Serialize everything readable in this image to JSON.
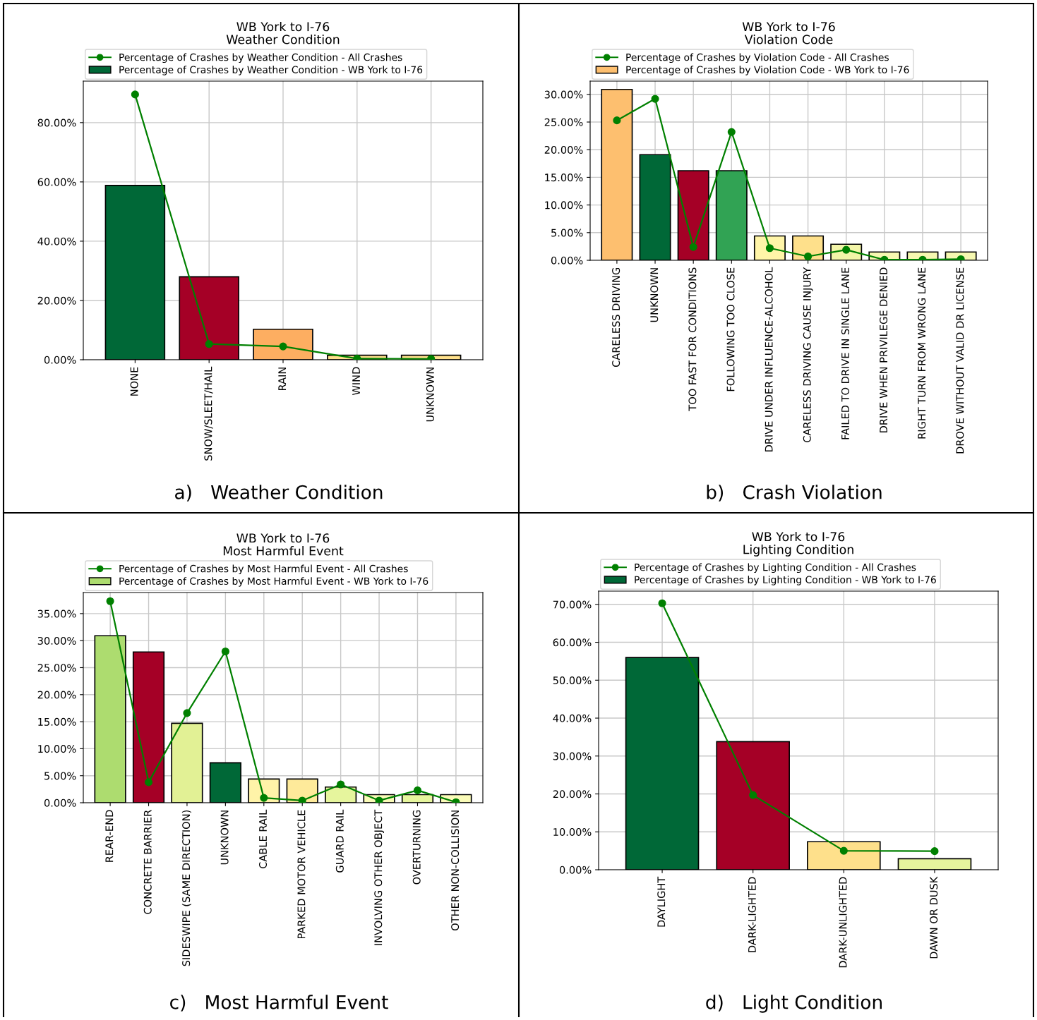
{
  "chart_data": [
    {
      "type": "bar",
      "title": "WB York to I-76\nWeather Condition",
      "categories": [
        "NONE",
        "SNOW/SLEET/HAIL",
        "RAIN",
        "WIND",
        "UNKNOWN"
      ],
      "series": [
        {
          "name": "Percentage of Crashes by Weather Condition - All Crashes",
          "type": "line",
          "color": "#008000",
          "values": [
            89.5,
            5.3,
            4.5,
            0.4,
            0.3
          ]
        },
        {
          "name": "Percentage of Crashes by Weather Condition - WB York to I-76",
          "color": "#006837",
          "colors": [
            "#006837",
            "#a50026",
            "#fdae61",
            "#fee08b",
            "#fee08b"
          ],
          "values": [
            58.8,
            28.0,
            10.3,
            1.5,
            1.5
          ]
        }
      ],
      "legend": "top",
      "ylim": [
        0,
        94
      ],
      "yticks": [
        {
          "value": 0,
          "label": "0.00%"
        },
        {
          "value": 20,
          "label": "20.00%"
        },
        {
          "value": 40,
          "label": "40.00%"
        },
        {
          "value": 60,
          "label": "60.00%"
        },
        {
          "value": 80,
          "label": "80.00%"
        }
      ],
      "grid": true,
      "marker": "circle",
      "annotations": [
        "a)   Weather Condition"
      ]
    },
    {
      "type": "bar",
      "title": "WB York to I-76\nViolation Code",
      "categories": [
        "CARELESS DRIVING",
        "UNKNOWN",
        "TOO FAST FOR CONDITIONS",
        "FOLLOWING TOO CLOSE",
        "DRIVE UNDER INFLUENCE-ALCOHOL",
        "CARELESS DRIVING CAUSE INJURY",
        "FAILED TO DRIVE IN SINGLE LANE",
        "DRIVE WHEN PRIVILEGE DENIED",
        "RIGHT TURN FROM WRONG LANE",
        "DROVE WITHOUT VALID DR LICENSE"
      ],
      "series": [
        {
          "name": "Percentage of Crashes by Violation Code - All Crashes",
          "type": "line",
          "color": "#008000",
          "values": [
            25.3,
            29.2,
            2.4,
            23.2,
            2.2,
            0.7,
            1.9,
            0.1,
            0.1,
            0.2
          ]
        },
        {
          "name": "Percentage of Crashes by Violation Code - WB York to I-76",
          "color": "#fdbf6f",
          "colors": [
            "#fdbf6f",
            "#006837",
            "#a50026",
            "#31a354",
            "#fff5a8",
            "#fee08b",
            "#f3f5a8",
            "#f6f8b0",
            "#f6f8b0",
            "#f6f8b0"
          ],
          "values": [
            30.9,
            19.1,
            16.2,
            16.2,
            4.4,
            4.4,
            2.9,
            1.5,
            1.5,
            1.5
          ]
        }
      ],
      "legend": "top",
      "ylim": [
        0,
        32.4
      ],
      "yticks": [
        {
          "value": 0,
          "label": "0.00%"
        },
        {
          "value": 5,
          "label": "5.00%"
        },
        {
          "value": 10,
          "label": "10.00%"
        },
        {
          "value": 15,
          "label": "15.00%"
        },
        {
          "value": 20,
          "label": "20.00%"
        },
        {
          "value": 25,
          "label": "25.00%"
        },
        {
          "value": 30,
          "label": "30.00%"
        }
      ],
      "grid": true,
      "marker": "circle",
      "annotations": [
        "b)   Crash Violation"
      ]
    },
    {
      "type": "bar",
      "title": "WB York to I-76\nMost Harmful Event",
      "categories": [
        "REAR-END",
        "CONCRETE BARRIER",
        "SIDESWIPE (SAME DIRECTION)",
        "UNKNOWN",
        "CABLE RAIL",
        "PARKED MOTOR VEHICLE",
        "GUARD RAIL",
        "INVOLVING OTHER OBJECT",
        "OVERTURNING",
        "OTHER NON-COLLISION"
      ],
      "series": [
        {
          "name": "Percentage of Crashes by Most Harmful Event - All Crashes",
          "type": "line",
          "color": "#008000",
          "values": [
            37.3,
            3.8,
            16.6,
            28.0,
            0.9,
            0.4,
            3.4,
            0.4,
            2.3,
            0.1
          ]
        },
        {
          "name": "Percentage of Crashes by Most Harmful Event - WB York to I-76",
          "color": "#addc6f",
          "colors": [
            "#addc6f",
            "#a50026",
            "#e2f195",
            "#006837",
            "#fff3a8",
            "#feea9a",
            "#e6f59d",
            "#fafbb8",
            "#e6f59d",
            "#fafbb8"
          ],
          "values": [
            30.9,
            27.9,
            14.7,
            7.4,
            4.4,
            4.4,
            2.9,
            1.5,
            1.5,
            1.5
          ]
        }
      ],
      "legend": "top",
      "ylim": [
        0,
        38.9
      ],
      "yticks": [
        {
          "value": 0,
          "label": "0.00%"
        },
        {
          "value": 5,
          "label": "5.00%"
        },
        {
          "value": 10,
          "label": "10.00%"
        },
        {
          "value": 15,
          "label": "15.00%"
        },
        {
          "value": 20,
          "label": "20.00%"
        },
        {
          "value": 25,
          "label": "25.00%"
        },
        {
          "value": 30,
          "label": "30.00%"
        },
        {
          "value": 35,
          "label": "35.00%"
        }
      ],
      "grid": true,
      "marker": "circle",
      "annotations": [
        "c)   Most Harmful Event"
      ]
    },
    {
      "type": "bar",
      "title": "WB York to I-76\nLighting Condition",
      "categories": [
        "DAYLIGHT",
        "DARK-LIGHTED",
        "DARK-UNLIGHTED",
        "DAWN OR DUSK"
      ],
      "series": [
        {
          "name": "Percentage of Crashes by Lighting Condition - All Crashes",
          "type": "line",
          "color": "#008000",
          "values": [
            70.3,
            19.7,
            5.0,
            4.9
          ]
        },
        {
          "name": "Percentage of Crashes by Lighting Condition - WB York to I-76",
          "color": "#006837",
          "colors": [
            "#006837",
            "#a50026",
            "#fee08b",
            "#e6f59d"
          ],
          "values": [
            56.0,
            33.8,
            7.4,
            2.9
          ]
        }
      ],
      "legend": "top",
      "ylim": [
        0,
        73.5
      ],
      "yticks": [
        {
          "value": 0,
          "label": "0.00%"
        },
        {
          "value": 10,
          "label": "10.00%"
        },
        {
          "value": 20,
          "label": "20.00%"
        },
        {
          "value": 30,
          "label": "30.00%"
        },
        {
          "value": 40,
          "label": "40.00%"
        },
        {
          "value": 50,
          "label": "50.00%"
        },
        {
          "value": 60,
          "label": "60.00%"
        },
        {
          "value": 70,
          "label": "70.00%"
        }
      ],
      "grid": true,
      "marker": "circle",
      "annotations": [
        "d)   Light Condition"
      ]
    }
  ]
}
